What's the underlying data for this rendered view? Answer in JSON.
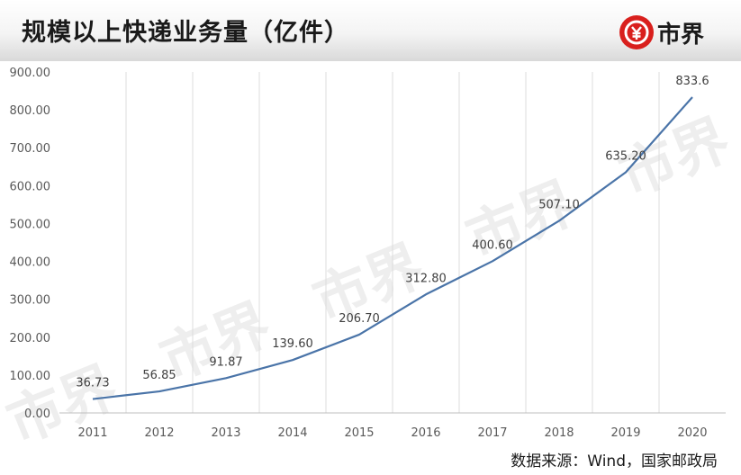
{
  "header": {
    "title": "规模以上快递业务量（亿件）",
    "logo_text": "市界",
    "logo_icon": "yuan-shield-icon",
    "logo_color": "#d9201d"
  },
  "watermark_text": "市界",
  "source": "数据来源：Wind，国家邮政局",
  "chart_data": {
    "type": "line",
    "title": "规模以上快递业务量（亿件）",
    "categories": [
      "2011",
      "2012",
      "2013",
      "2014",
      "2015",
      "2016",
      "2017",
      "2018",
      "2019",
      "2020"
    ],
    "series": [
      {
        "values": [
          36.73,
          56.85,
          91.87,
          139.6,
          206.7,
          312.8,
          400.6,
          507.1,
          635.2,
          833.6
        ],
        "labels": [
          "36.73",
          "56.85",
          "91.87",
          "139.60",
          "206.70",
          "312.80",
          "400.60",
          "507.10",
          "635.20",
          "833.6"
        ],
        "color": "#4a74a8"
      }
    ],
    "yticks": [
      "0.00",
      "100.00",
      "200.00",
      "300.00",
      "400.00",
      "500.00",
      "600.00",
      "700.00",
      "800.00",
      "900.00"
    ],
    "ylim": [
      0,
      900
    ],
    "grid": "vertical"
  }
}
